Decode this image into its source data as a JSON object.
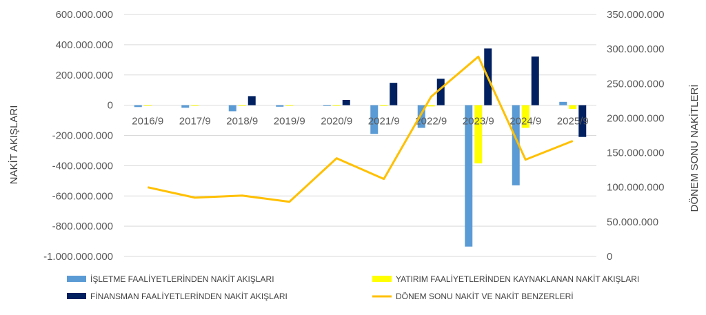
{
  "chart_data": {
    "type": "bar",
    "categories": [
      "2016/9",
      "2017/9",
      "2018/9",
      "2019/9",
      "2020/9",
      "2021/9",
      "2022/9",
      "2023/9",
      "2024/9",
      "2025/9"
    ],
    "title": "",
    "ylabel": "NAKİT AKIŞLARI",
    "y2label": "DÖNEM SONU NAKİTLERİ",
    "ylim": [
      -1000000000,
      600000000
    ],
    "y2lim": [
      0,
      350000000
    ],
    "y_ticks": [
      "600.000.000",
      "400.000.000",
      "200.000.000",
      "0",
      "-200.000.000",
      "-400.000.000",
      "-600.000.000",
      "-800.000.000",
      "-1.000.000.000"
    ],
    "y2_ticks": [
      "350.000.000",
      "300.000.000",
      "250.000.000",
      "200.000.000",
      "150.000.000",
      "100.000.000",
      "50.000.000",
      "0"
    ],
    "legend_position": "bottom",
    "grid": true,
    "series": [
      {
        "name": "İŞLETME FAALİYETLERİNDEN NAKİT AKIŞLARI",
        "type": "bar",
        "axis": "left",
        "color": "#5B9BD5",
        "values": [
          -12000000,
          -17000000,
          -40000000,
          -10000000,
          -5000000,
          -190000000,
          -150000000,
          -935000000,
          -530000000,
          22000000
        ]
      },
      {
        "name": "YATIRIM FAALİYETLERİNDEN KAYNAKLANAN NAKİT AKIŞLARI",
        "type": "bar",
        "axis": "left",
        "color": "#FFFF00",
        "values": [
          -2000000,
          -2000000,
          -3000000,
          -2000000,
          -2000000,
          -5000000,
          -8000000,
          -385000000,
          -150000000,
          -25000000
        ]
      },
      {
        "name": "FİNANSMAN FAALİYETLERİNDEN NAKİT AKIŞLARI",
        "type": "bar",
        "axis": "left",
        "color": "#002060",
        "values": [
          0,
          0,
          60000000,
          0,
          35000000,
          148000000,
          175000000,
          375000000,
          322000000,
          -210000000
        ]
      },
      {
        "name": "DÖNEM SONU NAKİT VE NAKİT BENZERLERİ",
        "type": "line",
        "axis": "right",
        "color": "#FFC000",
        "values": [
          100000000,
          85000000,
          88000000,
          79000000,
          142000000,
          112000000,
          231000000,
          289000000,
          140000000,
          167000000
        ]
      }
    ]
  }
}
